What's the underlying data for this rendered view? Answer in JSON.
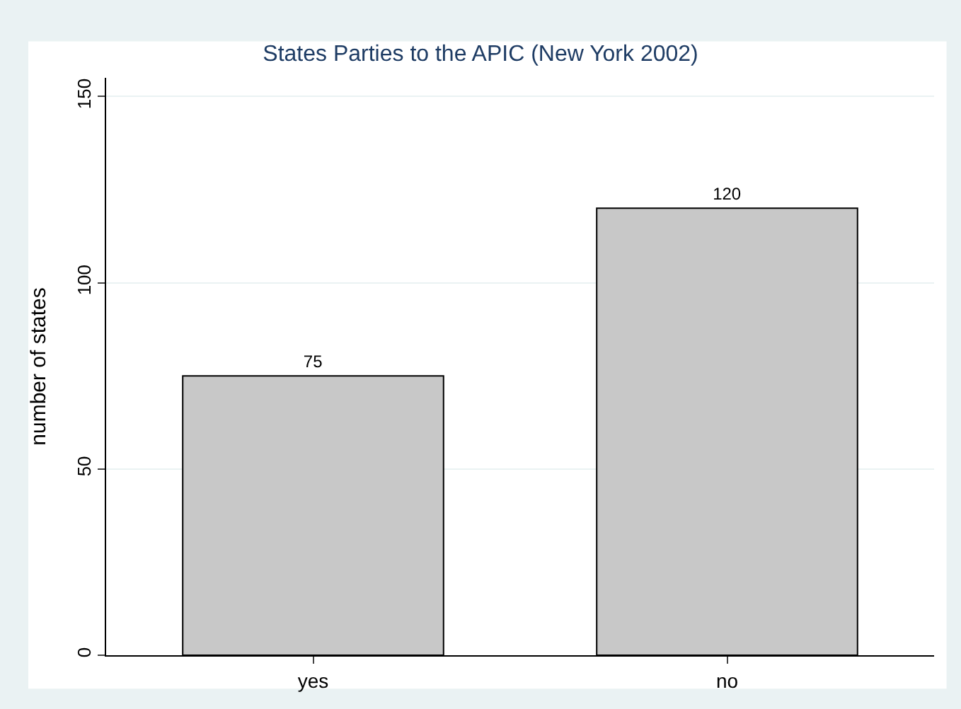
{
  "chart_data": {
    "type": "bar",
    "title": "States Parties to the APIC (New York 2002)",
    "ylabel": "number of states",
    "categories": [
      "yes",
      "no"
    ],
    "values": [
      75,
      120
    ],
    "color": "#c8c8c8",
    "ylim": [
      0,
      155
    ],
    "yticks": [
      0,
      50,
      100,
      150
    ],
    "grid": "y",
    "data_labels": true
  }
}
